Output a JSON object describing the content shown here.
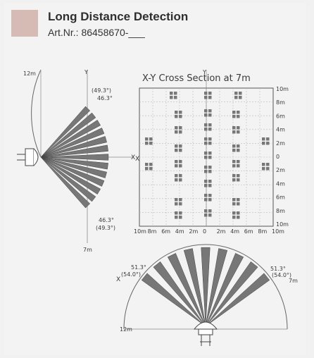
{
  "header": {
    "title": "Long Distance Detection",
    "art_nr": "Art.Nr.: 86458670-___"
  },
  "diagram": {
    "cross_section_title": "X-Y Cross Section at 7m",
    "side_view": {
      "range_label": "12m",
      "bottom_label": "7m",
      "angle_top": "46.3°",
      "angle_top_alt": "(49.3°)",
      "angle_bottom": "46.3°",
      "angle_bottom_alt": "(49.3°)",
      "x_axis": "X",
      "y_axis": "Y"
    },
    "grid": {
      "right_labels": [
        "10m",
        "8m",
        "6m",
        "4m",
        "2m",
        "0",
        "2m",
        "4m",
        "6m",
        "8m",
        "10m"
      ],
      "bottom_labels": [
        "10m",
        "8m",
        "6m",
        "4m",
        "2m",
        "0",
        "2m",
        "4m",
        "6m",
        "8m",
        "10m"
      ],
      "y_axis": "Y",
      "x_axis": "X"
    },
    "top_view": {
      "left_angle": "51.3°",
      "left_angle_alt": "(54.0°)",
      "right_angle": "51.3°",
      "right_angle_alt": "(54.0°)",
      "range_label": "12m",
      "right_range": "7m",
      "x_axis": "X"
    }
  }
}
